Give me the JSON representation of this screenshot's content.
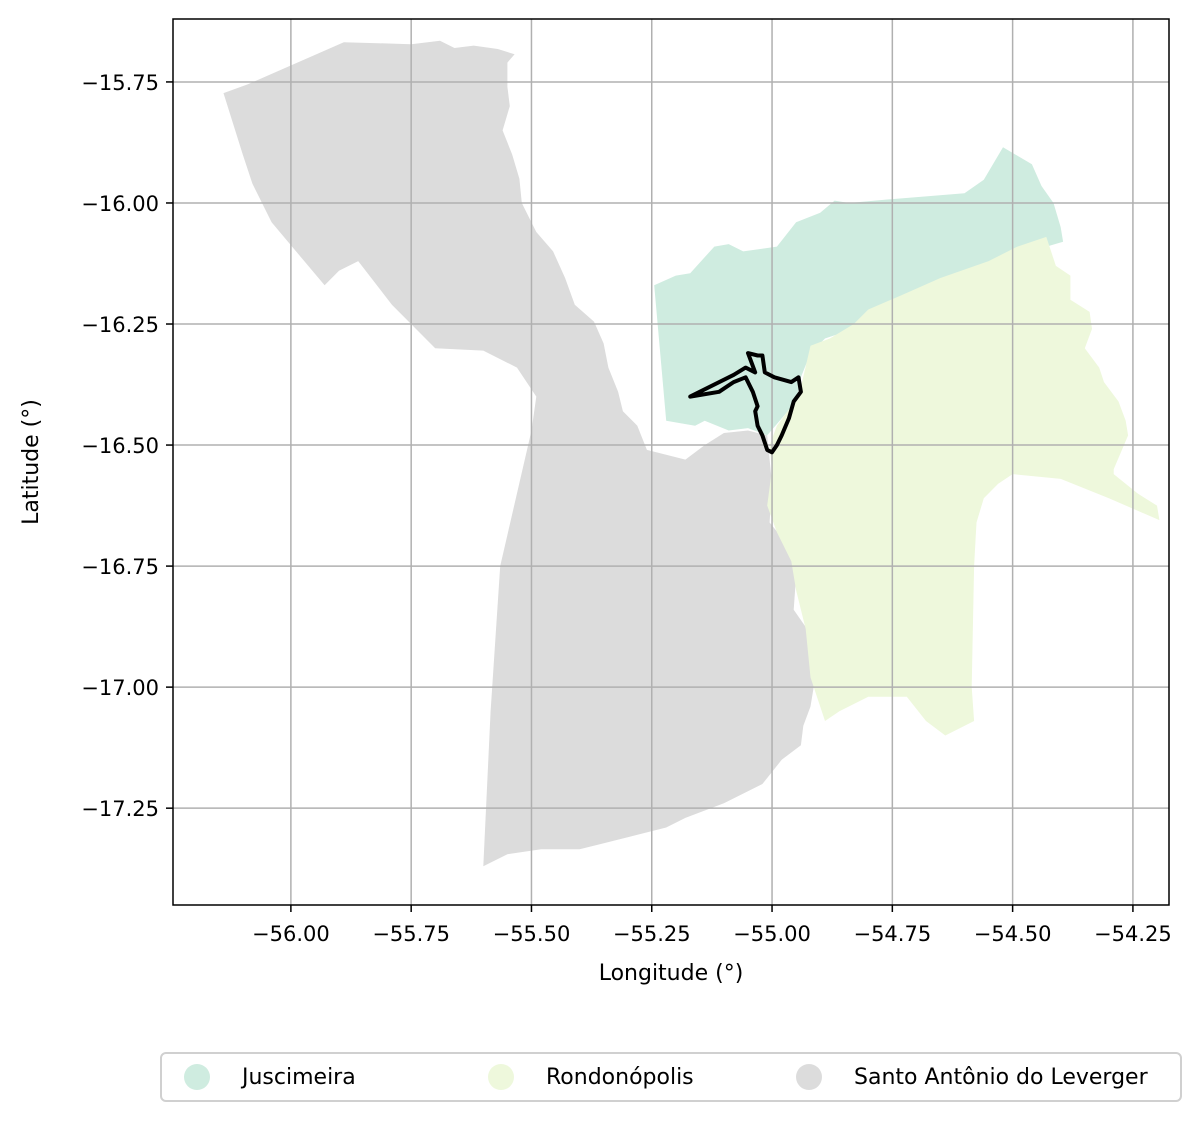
{
  "map": {
    "xlabel": "Longitude (°)",
    "ylabel": "Latitude (°)",
    "xlim": [
      -56.245,
      -54.175
    ],
    "ylim": [
      -17.45,
      -15.62
    ],
    "xticks": [
      -56.0,
      -55.75,
      -55.5,
      -55.25,
      -55.0,
      -54.75,
      -54.5,
      -54.25
    ],
    "yticks": [
      -15.75,
      -16.0,
      -16.25,
      -16.5,
      -16.75,
      -17.0,
      -17.25
    ],
    "xtick_labels": [
      "−56.00",
      "−55.75",
      "−55.50",
      "−55.25",
      "−55.00",
      "−54.75",
      "−54.50",
      "−54.25"
    ],
    "ytick_labels": [
      "−15.75",
      "−16.00",
      "−16.25",
      "−16.50",
      "−16.75",
      "−17.00",
      "−17.25"
    ],
    "grid": true,
    "regions": [
      {
        "name": "Santo Antônio do Leverger",
        "color": "#dcdcdc",
        "outline": [
          [
            -56.14,
            -15.773
          ],
          [
            -56.09,
            -15.755
          ],
          [
            -55.89,
            -15.668
          ],
          [
            -55.75,
            -15.672
          ],
          [
            -55.69,
            -15.665
          ],
          [
            -55.66,
            -15.68
          ],
          [
            -55.62,
            -15.675
          ],
          [
            -55.57,
            -15.682
          ],
          [
            -55.535,
            -15.693
          ],
          [
            -55.55,
            -15.71
          ],
          [
            -55.55,
            -15.76
          ],
          [
            -55.545,
            -15.8
          ],
          [
            -55.56,
            -15.85
          ],
          [
            -55.54,
            -15.9
          ],
          [
            -55.525,
            -15.95
          ],
          [
            -55.52,
            -16.0
          ],
          [
            -55.49,
            -16.06
          ],
          [
            -55.455,
            -16.1
          ],
          [
            -55.43,
            -16.155
          ],
          [
            -55.41,
            -16.21
          ],
          [
            -55.37,
            -16.245
          ],
          [
            -55.35,
            -16.29
          ],
          [
            -55.34,
            -16.34
          ],
          [
            -55.32,
            -16.39
          ],
          [
            -55.31,
            -16.43
          ],
          [
            -55.28,
            -16.46
          ],
          [
            -55.26,
            -16.51
          ],
          [
            -55.18,
            -16.53
          ],
          [
            -55.14,
            -16.5
          ],
          [
            -55.1,
            -16.475
          ],
          [
            -55.05,
            -16.47
          ],
          [
            -55.01,
            -16.48
          ],
          [
            -55.0,
            -16.58
          ],
          [
            -55.005,
            -16.66
          ],
          [
            -54.96,
            -16.715
          ],
          [
            -54.95,
            -16.77
          ],
          [
            -54.955,
            -16.84
          ],
          [
            -54.92,
            -16.89
          ],
          [
            -54.91,
            -16.98
          ],
          [
            -54.92,
            -17.04
          ],
          [
            -54.935,
            -17.08
          ],
          [
            -54.94,
            -17.12
          ],
          [
            -54.98,
            -17.15
          ],
          [
            -55.02,
            -17.2
          ],
          [
            -55.1,
            -17.24
          ],
          [
            -55.18,
            -17.27
          ],
          [
            -55.22,
            -17.29
          ],
          [
            -55.3,
            -17.31
          ],
          [
            -55.36,
            -17.325
          ],
          [
            -55.4,
            -17.335
          ],
          [
            -55.48,
            -17.335
          ],
          [
            -55.55,
            -17.345
          ],
          [
            -55.6,
            -17.37
          ],
          [
            -55.585,
            -17.05
          ],
          [
            -55.565,
            -16.75
          ],
          [
            -55.5,
            -16.47
          ],
          [
            -55.49,
            -16.4
          ],
          [
            -55.53,
            -16.34
          ],
          [
            -55.6,
            -16.305
          ],
          [
            -55.7,
            -16.3
          ],
          [
            -55.79,
            -16.21
          ],
          [
            -55.86,
            -16.12
          ],
          [
            -55.9,
            -16.14
          ],
          [
            -55.93,
            -16.17
          ],
          [
            -56.04,
            -16.04
          ],
          [
            -56.08,
            -15.96
          ],
          [
            -56.1,
            -15.9
          ]
        ]
      },
      {
        "name": "Juscimeira",
        "color": "#cfece0",
        "outline": [
          [
            -55.245,
            -16.17
          ],
          [
            -55.2,
            -16.15
          ],
          [
            -55.17,
            -16.145
          ],
          [
            -55.12,
            -16.09
          ],
          [
            -55.09,
            -16.085
          ],
          [
            -55.06,
            -16.1
          ],
          [
            -54.99,
            -16.09
          ],
          [
            -54.95,
            -16.04
          ],
          [
            -54.9,
            -16.02
          ],
          [
            -54.87,
            -15.995
          ],
          [
            -54.84,
            -16.0
          ],
          [
            -54.75,
            -15.992
          ],
          [
            -54.6,
            -15.98
          ],
          [
            -54.56,
            -15.952
          ],
          [
            -54.52,
            -15.885
          ],
          [
            -54.46,
            -15.92
          ],
          [
            -54.44,
            -15.965
          ],
          [
            -54.415,
            -16.0
          ],
          [
            -54.4,
            -16.05
          ],
          [
            -54.395,
            -16.08
          ],
          [
            -54.48,
            -16.105
          ],
          [
            -54.59,
            -16.15
          ],
          [
            -54.66,
            -16.17
          ],
          [
            -54.7,
            -16.2
          ],
          [
            -54.77,
            -16.23
          ],
          [
            -54.83,
            -16.26
          ],
          [
            -54.89,
            -16.28
          ],
          [
            -54.92,
            -16.31
          ],
          [
            -54.94,
            -16.36
          ],
          [
            -54.95,
            -16.41
          ],
          [
            -54.98,
            -16.445
          ],
          [
            -55.01,
            -16.48
          ],
          [
            -55.05,
            -16.465
          ],
          [
            -55.09,
            -16.47
          ],
          [
            -55.14,
            -16.45
          ],
          [
            -55.16,
            -16.46
          ],
          [
            -55.19,
            -16.455
          ],
          [
            -55.22,
            -16.45
          ]
        ]
      },
      {
        "name": "Rondonópolis",
        "color": "#eef8dc",
        "outline": [
          [
            -54.92,
            -16.295
          ],
          [
            -54.88,
            -16.28
          ],
          [
            -54.83,
            -16.25
          ],
          [
            -54.8,
            -16.22
          ],
          [
            -54.73,
            -16.19
          ],
          [
            -54.65,
            -16.155
          ],
          [
            -54.55,
            -16.12
          ],
          [
            -54.49,
            -16.09
          ],
          [
            -54.46,
            -16.08
          ],
          [
            -54.43,
            -16.07
          ],
          [
            -54.41,
            -16.13
          ],
          [
            -54.38,
            -16.15
          ],
          [
            -54.38,
            -16.2
          ],
          [
            -54.34,
            -16.225
          ],
          [
            -54.335,
            -16.26
          ],
          [
            -54.35,
            -16.3
          ],
          [
            -54.32,
            -16.34
          ],
          [
            -54.31,
            -16.37
          ],
          [
            -54.28,
            -16.41
          ],
          [
            -54.265,
            -16.45
          ],
          [
            -54.26,
            -16.48
          ],
          [
            -54.29,
            -16.55
          ],
          [
            -54.29,
            -16.56
          ],
          [
            -54.24,
            -16.6
          ],
          [
            -54.2,
            -16.625
          ],
          [
            -54.195,
            -16.655
          ],
          [
            -54.3,
            -16.61
          ],
          [
            -54.4,
            -16.57
          ],
          [
            -54.5,
            -16.56
          ],
          [
            -54.53,
            -16.58
          ],
          [
            -54.56,
            -16.61
          ],
          [
            -54.575,
            -16.66
          ],
          [
            -54.58,
            -16.75
          ],
          [
            -54.585,
            -17.0
          ],
          [
            -54.58,
            -17.07
          ],
          [
            -54.64,
            -17.1
          ],
          [
            -54.68,
            -17.07
          ],
          [
            -54.72,
            -17.02
          ],
          [
            -54.8,
            -17.02
          ],
          [
            -54.86,
            -17.05
          ],
          [
            -54.89,
            -17.07
          ],
          [
            -54.92,
            -16.98
          ],
          [
            -54.93,
            -16.88
          ],
          [
            -54.95,
            -16.8
          ],
          [
            -54.96,
            -16.74
          ],
          [
            -54.99,
            -16.68
          ],
          [
            -55.01,
            -16.625
          ],
          [
            -55.0,
            -16.55
          ],
          [
            -55.005,
            -16.5
          ],
          [
            -54.99,
            -16.46
          ],
          [
            -54.96,
            -16.42
          ],
          [
            -54.94,
            -16.38
          ]
        ]
      }
    ],
    "highlight_outline": [
      [
        -55.01,
        -16.51
      ],
      [
        -55.02,
        -16.48
      ],
      [
        -55.03,
        -16.46
      ],
      [
        -55.035,
        -16.43
      ],
      [
        -55.03,
        -16.42
      ],
      [
        -55.04,
        -16.39
      ],
      [
        -55.055,
        -16.36
      ],
      [
        -55.08,
        -16.37
      ],
      [
        -55.11,
        -16.39
      ],
      [
        -55.17,
        -16.4
      ],
      [
        -55.08,
        -16.355
      ],
      [
        -55.055,
        -16.34
      ],
      [
        -55.035,
        -16.35
      ],
      [
        -55.05,
        -16.31
      ],
      [
        -55.03,
        -16.315
      ],
      [
        -55.02,
        -16.315
      ],
      [
        -55.015,
        -16.35
      ],
      [
        -54.995,
        -16.36
      ],
      [
        -54.96,
        -16.37
      ],
      [
        -54.945,
        -16.36
      ],
      [
        -54.94,
        -16.39
      ],
      [
        -54.955,
        -16.41
      ],
      [
        -54.965,
        -16.445
      ],
      [
        -54.98,
        -16.48
      ],
      [
        -54.99,
        -16.5
      ],
      [
        -55.0,
        -16.515
      ]
    ]
  },
  "legend": {
    "items": [
      {
        "label": "Juscimeira",
        "color": "#cfece0"
      },
      {
        "label": "Rondonópolis",
        "color": "#eef8dc"
      },
      {
        "label": "Santo Antônio do Leverger",
        "color": "#dcdcdc"
      }
    ]
  }
}
